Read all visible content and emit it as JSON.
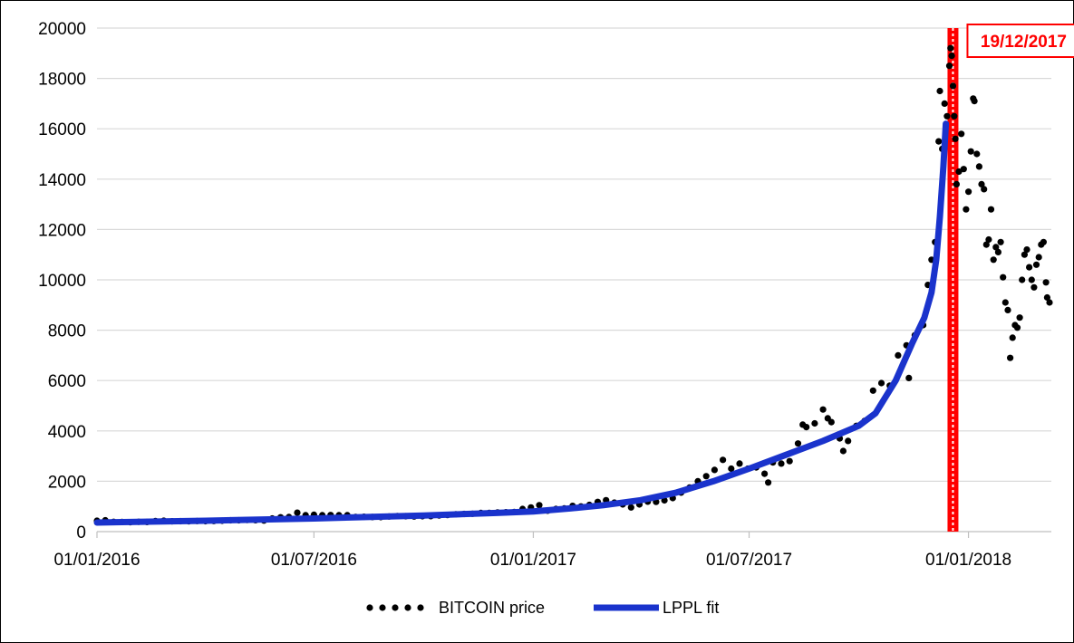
{
  "chart_data": {
    "type": "line",
    "title": "",
    "xlabel": "",
    "ylabel": "",
    "ylim": [
      0,
      20000
    ],
    "yticks": [
      0,
      2000,
      4000,
      6000,
      8000,
      10000,
      12000,
      14000,
      16000,
      18000,
      20000
    ],
    "xlim": [
      "2016-01-01",
      "2018-03-10"
    ],
    "xticks": [
      {
        "date": "2016-01-01",
        "label": "01/01/2016"
      },
      {
        "date": "2016-07-01",
        "label": "01/07/2016"
      },
      {
        "date": "2017-01-01",
        "label": "01/01/2017"
      },
      {
        "date": "2017-07-01",
        "label": "01/07/2017"
      },
      {
        "date": "2018-01-01",
        "label": "01/01/2018"
      }
    ],
    "grid": {
      "horizontal": true,
      "vertical": false
    },
    "legend": {
      "position": "bottom"
    },
    "series": [
      {
        "name": "BITCOIN price",
        "style": "dots",
        "color": "#000000",
        "points": [
          [
            "2016-01-01",
            430
          ],
          [
            "2016-01-08",
            450
          ],
          [
            "2016-01-15",
            390
          ],
          [
            "2016-01-22",
            380
          ],
          [
            "2016-01-29",
            375
          ],
          [
            "2016-02-05",
            390
          ],
          [
            "2016-02-12",
            380
          ],
          [
            "2016-02-19",
            420
          ],
          [
            "2016-02-26",
            430
          ],
          [
            "2016-03-04",
            410
          ],
          [
            "2016-03-11",
            415
          ],
          [
            "2016-03-18",
            410
          ],
          [
            "2016-03-25",
            420
          ],
          [
            "2016-04-01",
            415
          ],
          [
            "2016-04-08",
            420
          ],
          [
            "2016-04-15",
            430
          ],
          [
            "2016-04-22",
            450
          ],
          [
            "2016-04-29",
            450
          ],
          [
            "2016-05-06",
            460
          ],
          [
            "2016-05-13",
            455
          ],
          [
            "2016-05-20",
            440
          ],
          [
            "2016-05-27",
            520
          ],
          [
            "2016-06-03",
            570
          ],
          [
            "2016-06-10",
            580
          ],
          [
            "2016-06-17",
            750
          ],
          [
            "2016-06-24",
            650
          ],
          [
            "2016-07-01",
            670
          ],
          [
            "2016-07-08",
            650
          ],
          [
            "2016-07-15",
            660
          ],
          [
            "2016-07-22",
            650
          ],
          [
            "2016-07-29",
            650
          ],
          [
            "2016-08-05",
            580
          ],
          [
            "2016-08-12",
            590
          ],
          [
            "2016-08-19",
            580
          ],
          [
            "2016-08-26",
            575
          ],
          [
            "2016-09-02",
            600
          ],
          [
            "2016-09-09",
            620
          ],
          [
            "2016-09-16",
            610
          ],
          [
            "2016-09-23",
            600
          ],
          [
            "2016-09-30",
            610
          ],
          [
            "2016-10-07",
            615
          ],
          [
            "2016-10-14",
            640
          ],
          [
            "2016-10-21",
            660
          ],
          [
            "2016-10-28",
            690
          ],
          [
            "2016-11-04",
            700
          ],
          [
            "2016-11-11",
            710
          ],
          [
            "2016-11-18",
            740
          ],
          [
            "2016-11-25",
            740
          ],
          [
            "2016-12-02",
            760
          ],
          [
            "2016-12-09",
            770
          ],
          [
            "2016-12-16",
            780
          ],
          [
            "2016-12-23",
            900
          ],
          [
            "2016-12-30",
            960
          ],
          [
            "2017-01-06",
            1050
          ],
          [
            "2017-01-13",
            830
          ],
          [
            "2017-01-20",
            900
          ],
          [
            "2017-01-27",
            920
          ],
          [
            "2017-02-03",
            1020
          ],
          [
            "2017-02-10",
            1000
          ],
          [
            "2017-02-17",
            1060
          ],
          [
            "2017-02-24",
            1180
          ],
          [
            "2017-03-03",
            1250
          ],
          [
            "2017-03-10",
            1150
          ],
          [
            "2017-03-17",
            1080
          ],
          [
            "2017-03-24",
            960
          ],
          [
            "2017-03-31",
            1080
          ],
          [
            "2017-04-07",
            1190
          ],
          [
            "2017-04-14",
            1180
          ],
          [
            "2017-04-21",
            1240
          ],
          [
            "2017-04-28",
            1330
          ],
          [
            "2017-05-05",
            1550
          ],
          [
            "2017-05-12",
            1750
          ],
          [
            "2017-05-19",
            2000
          ],
          [
            "2017-05-26",
            2200
          ],
          [
            "2017-06-02",
            2450
          ],
          [
            "2017-06-09",
            2850
          ],
          [
            "2017-06-16",
            2500
          ],
          [
            "2017-06-23",
            2700
          ],
          [
            "2017-06-30",
            2500
          ],
          [
            "2017-07-07",
            2550
          ],
          [
            "2017-07-14",
            2300
          ],
          [
            "2017-07-17",
            1950
          ],
          [
            "2017-07-21",
            2750
          ],
          [
            "2017-07-28",
            2700
          ],
          [
            "2017-08-04",
            2800
          ],
          [
            "2017-08-11",
            3500
          ],
          [
            "2017-08-15",
            4250
          ],
          [
            "2017-08-18",
            4150
          ],
          [
            "2017-08-25",
            4300
          ],
          [
            "2017-09-01",
            4850
          ],
          [
            "2017-09-05",
            4500
          ],
          [
            "2017-09-08",
            4350
          ],
          [
            "2017-09-15",
            3700
          ],
          [
            "2017-09-18",
            3200
          ],
          [
            "2017-09-22",
            3600
          ],
          [
            "2017-09-29",
            4200
          ],
          [
            "2017-10-06",
            4400
          ],
          [
            "2017-10-13",
            5600
          ],
          [
            "2017-10-20",
            5900
          ],
          [
            "2017-10-27",
            5800
          ],
          [
            "2017-11-03",
            7000
          ],
          [
            "2017-11-10",
            7400
          ],
          [
            "2017-11-12",
            6100
          ],
          [
            "2017-11-17",
            7800
          ],
          [
            "2017-11-24",
            8200
          ],
          [
            "2017-11-28",
            9800
          ],
          [
            "2017-12-01",
            10800
          ],
          [
            "2017-12-04",
            11500
          ],
          [
            "2017-12-07",
            15500
          ],
          [
            "2017-12-08",
            17500
          ],
          [
            "2017-12-10",
            15200
          ],
          [
            "2017-12-12",
            17000
          ],
          [
            "2017-12-14",
            16500
          ],
          [
            "2017-12-16",
            18500
          ],
          [
            "2017-12-17",
            19200
          ],
          [
            "2017-12-18",
            18900
          ],
          [
            "2017-12-19",
            17700
          ],
          [
            "2017-12-20",
            16500
          ],
          [
            "2017-12-21",
            15600
          ],
          [
            "2017-12-22",
            13800
          ],
          [
            "2017-12-24",
            14300
          ],
          [
            "2017-12-26",
            15800
          ],
          [
            "2017-12-28",
            14400
          ],
          [
            "2017-12-30",
            12800
          ],
          [
            "2018-01-01",
            13500
          ],
          [
            "2018-01-03",
            15100
          ],
          [
            "2018-01-05",
            17200
          ],
          [
            "2018-01-06",
            17100
          ],
          [
            "2018-01-08",
            15000
          ],
          [
            "2018-01-10",
            14500
          ],
          [
            "2018-01-12",
            13800
          ],
          [
            "2018-01-14",
            13600
          ],
          [
            "2018-01-16",
            11400
          ],
          [
            "2018-01-18",
            11600
          ],
          [
            "2018-01-20",
            12800
          ],
          [
            "2018-01-22",
            10800
          ],
          [
            "2018-01-24",
            11300
          ],
          [
            "2018-01-26",
            11100
          ],
          [
            "2018-01-28",
            11500
          ],
          [
            "2018-01-30",
            10100
          ],
          [
            "2018-02-01",
            9100
          ],
          [
            "2018-02-03",
            8800
          ],
          [
            "2018-02-05",
            6900
          ],
          [
            "2018-02-07",
            7700
          ],
          [
            "2018-02-09",
            8200
          ],
          [
            "2018-02-11",
            8100
          ],
          [
            "2018-02-13",
            8500
          ],
          [
            "2018-02-15",
            10000
          ],
          [
            "2018-02-17",
            11000
          ],
          [
            "2018-02-19",
            11200
          ],
          [
            "2018-02-21",
            10500
          ],
          [
            "2018-02-23",
            10000
          ],
          [
            "2018-02-25",
            9700
          ],
          [
            "2018-02-27",
            10600
          ],
          [
            "2018-03-01",
            10900
          ],
          [
            "2018-03-03",
            11400
          ],
          [
            "2018-03-05",
            11500
          ],
          [
            "2018-03-07",
            9900
          ],
          [
            "2018-03-08",
            9300
          ],
          [
            "2018-03-10",
            9100
          ]
        ]
      },
      {
        "name": "LPPL fit",
        "style": "line",
        "color": "#1a33cc",
        "points": [
          [
            "2016-01-01",
            360
          ],
          [
            "2016-04-01",
            430
          ],
          [
            "2016-07-01",
            520
          ],
          [
            "2016-10-01",
            640
          ],
          [
            "2016-12-01",
            740
          ],
          [
            "2017-01-01",
            800
          ],
          [
            "2017-02-01",
            920
          ],
          [
            "2017-03-01",
            1050
          ],
          [
            "2017-04-01",
            1250
          ],
          [
            "2017-05-01",
            1550
          ],
          [
            "2017-06-01",
            2000
          ],
          [
            "2017-07-01",
            2500
          ],
          [
            "2017-08-01",
            3050
          ],
          [
            "2017-09-01",
            3600
          ],
          [
            "2017-10-01",
            4200
          ],
          [
            "2017-10-15",
            4700
          ],
          [
            "2017-11-01",
            6000
          ],
          [
            "2017-11-15",
            7500
          ],
          [
            "2017-11-25",
            8500
          ],
          [
            "2017-12-01",
            9500
          ],
          [
            "2017-12-05",
            10800
          ],
          [
            "2017-12-08",
            12500
          ],
          [
            "2017-12-11",
            14500
          ],
          [
            "2017-12-13",
            16200
          ]
        ]
      }
    ],
    "annotations": [
      {
        "type": "vertical-band",
        "date": "2017-12-19",
        "label": "19/12/2017",
        "color": "#ff0000"
      }
    ]
  }
}
